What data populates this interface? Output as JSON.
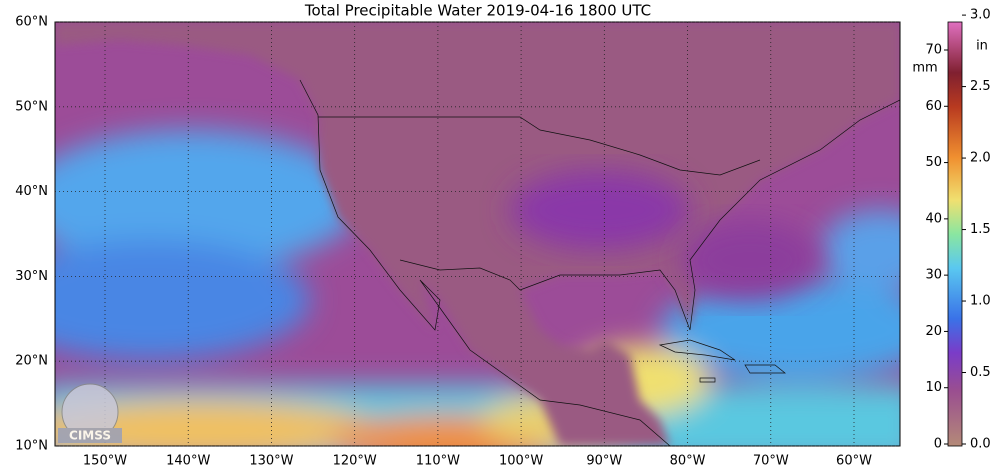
{
  "title": "Total Precipitable Water  2019-04-16 1800 UTC",
  "lat_ticks": [
    {
      "value": 60,
      "label": "60°N"
    },
    {
      "value": 50,
      "label": "50°N"
    },
    {
      "value": 40,
      "label": "40°N"
    },
    {
      "value": 30,
      "label": "30°N"
    },
    {
      "value": 20,
      "label": "20°N"
    },
    {
      "value": 10,
      "label": "10°N"
    }
  ],
  "lon_ticks": [
    {
      "value": -150,
      "label": "150°W"
    },
    {
      "value": -140,
      "label": "140°W"
    },
    {
      "value": -130,
      "label": "130°W"
    },
    {
      "value": -120,
      "label": "120°W"
    },
    {
      "value": -110,
      "label": "110°W"
    },
    {
      "value": -100,
      "label": "100°W"
    },
    {
      "value": -90,
      "label": "90°W"
    },
    {
      "value": -80,
      "label": "80°W"
    },
    {
      "value": -70,
      "label": "70°W"
    },
    {
      "value": -60,
      "label": "60°W"
    }
  ],
  "colorbar": {
    "mm_label": "mm",
    "in_label": "in",
    "mm_ticks": [
      0,
      10,
      20,
      30,
      40,
      50,
      60,
      70
    ],
    "in_ticks": [
      {
        "value": 0,
        "label": "0.0"
      },
      {
        "value": 0.5,
        "label": "0.5"
      },
      {
        "value": 1,
        "label": "1.0"
      },
      {
        "value": 1.5,
        "label": "1.5"
      },
      {
        "value": 2,
        "label": "2.0"
      },
      {
        "value": 2.5,
        "label": "2.5"
      },
      {
        "value": 3,
        "label": "3.0"
      }
    ]
  },
  "logo_text": "CIMSS"
}
